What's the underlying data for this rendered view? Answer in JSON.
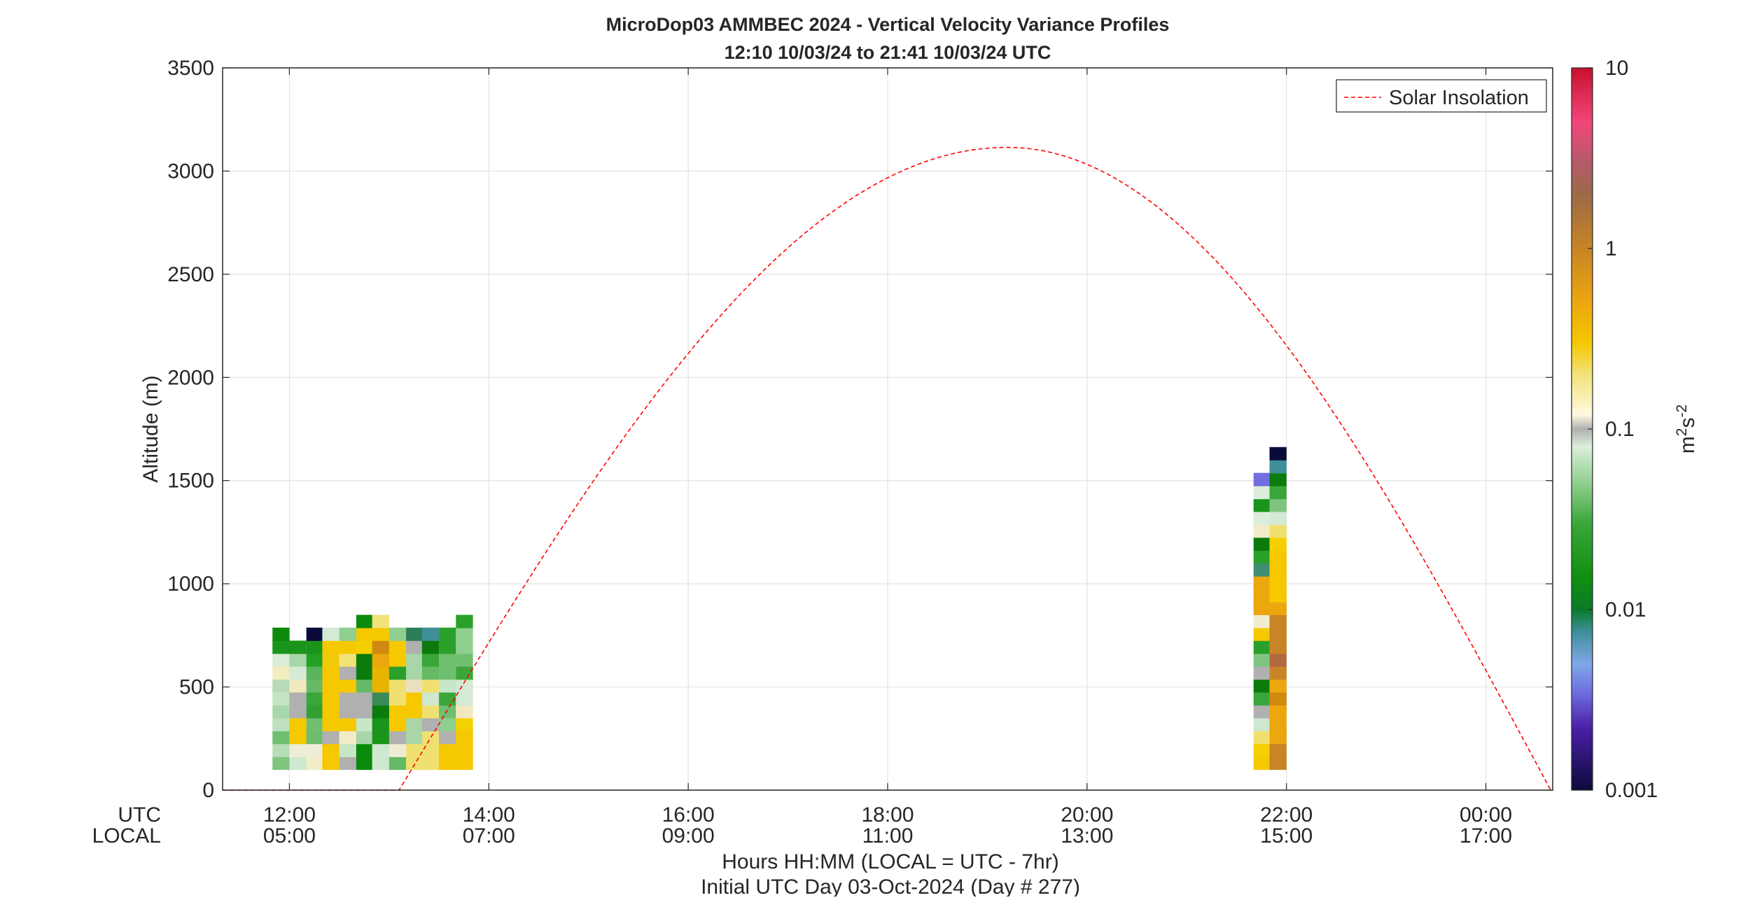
{
  "chart_data": {
    "type": "heatmap",
    "title": "MicroDop03 AMMBEC 2024 - Vertical Velocity Variance Profiles",
    "subtitle": "12:10 10/03/24 to 21:41 10/03/24  UTC",
    "ylabel": "Altitude (m)",
    "xlabel": "Hours HH:MM  (LOCAL = UTC - 7hr)",
    "xlabel2": "Initial UTC Day 03-Oct-2024 (Day # 277)",
    "ylim": [
      0,
      3500
    ],
    "xlim_hours_utc": [
      11.33,
      24.67
    ],
    "grid": true,
    "yticks": [
      {
        "value": 0,
        "label": "0"
      },
      {
        "value": 500,
        "label": "500"
      },
      {
        "value": 1000,
        "label": "1000"
      },
      {
        "value": 1500,
        "label": "1500"
      },
      {
        "value": 2000,
        "label": "2000"
      },
      {
        "value": 2500,
        "label": "2500"
      },
      {
        "value": 3000,
        "label": "3000"
      },
      {
        "value": 3500,
        "label": "3500"
      }
    ],
    "xrow_titles": {
      "utc": "UTC",
      "local": "LOCAL"
    },
    "xticks": [
      {
        "hour": 12,
        "utc": "12:00",
        "local": "05:00"
      },
      {
        "hour": 14,
        "utc": "14:00",
        "local": "07:00"
      },
      {
        "hour": 16,
        "utc": "16:00",
        "local": "09:00"
      },
      {
        "hour": 18,
        "utc": "18:00",
        "local": "11:00"
      },
      {
        "hour": 20,
        "utc": "20:00",
        "local": "13:00"
      },
      {
        "hour": 22,
        "utc": "22:00",
        "local": "15:00"
      },
      {
        "hour": 24,
        "utc": "00:00",
        "local": "17:00"
      }
    ],
    "legend": {
      "label": "Solar Insolation",
      "position": "top-right",
      "color": "#ff0000"
    },
    "solar_insolation_curve": {
      "zero_until_hour": 13.1,
      "peak_hour": 19.2,
      "peak_altitude_m": 3115,
      "ends_hour": 24.65
    },
    "colorbar": {
      "scale": "log",
      "range": [
        0.001,
        10
      ],
      "ticks": [
        {
          "value": 0.001,
          "label": "0.001"
        },
        {
          "value": 0.01,
          "label": "0.01"
        },
        {
          "value": 0.1,
          "label": "0.1"
        },
        {
          "value": 1,
          "label": "1"
        },
        {
          "value": 10,
          "label": "10"
        }
      ],
      "label_base": "m",
      "label_exp1": "2",
      "label_mid": "s",
      "label_exp2": "-2",
      "stops": [
        {
          "v": 0.001,
          "color": "#0b0b3b"
        },
        {
          "v": 0.0022,
          "color": "#4b1ea8"
        },
        {
          "v": 0.0035,
          "color": "#6f6fe0"
        },
        {
          "v": 0.005,
          "color": "#7fa8e8"
        },
        {
          "v": 0.0075,
          "color": "#3f8f9a"
        },
        {
          "v": 0.01,
          "color": "#0a7a2a"
        },
        {
          "v": 0.015,
          "color": "#0f8f10"
        },
        {
          "v": 0.03,
          "color": "#3aa63a"
        },
        {
          "v": 0.05,
          "color": "#8fcf8f"
        },
        {
          "v": 0.08,
          "color": "#dbeedb"
        },
        {
          "v": 0.1,
          "color": "#b0b0b0"
        },
        {
          "v": 0.12,
          "color": "#fff9e0"
        },
        {
          "v": 0.2,
          "color": "#f2e27a"
        },
        {
          "v": 0.3,
          "color": "#f5c800"
        },
        {
          "v": 0.5,
          "color": "#eca70e"
        },
        {
          "v": 1,
          "color": "#c88425"
        },
        {
          "v": 2,
          "color": "#9b6a48"
        },
        {
          "v": 3,
          "color": "#b65a6a"
        },
        {
          "v": 5,
          "color": "#f2467a"
        },
        {
          "v": 10,
          "color": "#c8102e"
        }
      ]
    },
    "profiles": [
      {
        "hour": 11.83,
        "cells": [
          [
            100,
            "#7fc57f"
          ],
          [
            162,
            "#b6ddb6"
          ],
          [
            225,
            "#6fbf6f"
          ],
          [
            287,
            "#bfe0bf"
          ],
          [
            350,
            "#aad7aa"
          ],
          [
            412,
            "#c4e4c4"
          ],
          [
            475,
            "#b8dcb8"
          ],
          [
            537,
            "#f2ecc0"
          ],
          [
            600,
            "#dcecd6"
          ],
          [
            662,
            "#1a941a"
          ],
          [
            725,
            "#0c8a0c"
          ]
        ]
      },
      {
        "hour": 12.0,
        "cells": [
          [
            100,
            "#cfe8cf"
          ],
          [
            162,
            "#eeeed8"
          ],
          [
            225,
            "#f5c800"
          ],
          [
            287,
            "#f5c800"
          ],
          [
            350,
            "#b0b0b0"
          ],
          [
            412,
            "#b0b0b0"
          ],
          [
            475,
            "#f2e8c0"
          ],
          [
            537,
            "#d6ead6"
          ],
          [
            600,
            "#a8d6a8"
          ],
          [
            662,
            "#1a941a"
          ]
        ]
      },
      {
        "hour": 12.17,
        "cells": [
          [
            100,
            "#f2ecc8"
          ],
          [
            162,
            "#eeeed8"
          ],
          [
            225,
            "#6dbd6d"
          ],
          [
            287,
            "#6fbf6f"
          ],
          [
            350,
            "#32a032"
          ],
          [
            412,
            "#3aa63a"
          ],
          [
            475,
            "#66ba66"
          ],
          [
            537,
            "#5ab45a"
          ],
          [
            600,
            "#23a023"
          ],
          [
            662,
            "#1a941a"
          ],
          [
            725,
            "#0b0b3b"
          ]
        ]
      },
      {
        "hour": 12.33,
        "cells": [
          [
            100,
            "#f5c800"
          ],
          [
            162,
            "#f5c800"
          ],
          [
            225,
            "#b0b0b0"
          ],
          [
            287,
            "#f5c800"
          ],
          [
            350,
            "#f5c800"
          ],
          [
            412,
            "#f5c800"
          ],
          [
            475,
            "#f5c800"
          ],
          [
            537,
            "#f5c800"
          ],
          [
            600,
            "#f2c80a"
          ],
          [
            662,
            "#f5c800"
          ],
          [
            725,
            "#d4ead4"
          ]
        ]
      },
      {
        "hour": 12.5,
        "cells": [
          [
            100,
            "#b0b0b0"
          ],
          [
            162,
            "#c8e6c8"
          ],
          [
            225,
            "#f2ecc8"
          ],
          [
            287,
            "#f5c800"
          ],
          [
            350,
            "#b0b0b0"
          ],
          [
            412,
            "#b0b0b0"
          ],
          [
            475,
            "#f5c800"
          ],
          [
            537,
            "#b0b0b0"
          ],
          [
            600,
            "#f2e27a"
          ],
          [
            662,
            "#f5c800"
          ],
          [
            725,
            "#8fcf8f"
          ]
        ]
      },
      {
        "hour": 12.67,
        "cells": [
          [
            100,
            "#0a8a0a"
          ],
          [
            162,
            "#0a8a0a"
          ],
          [
            225,
            "#a8d6a8"
          ],
          [
            287,
            "#c8e6c8"
          ],
          [
            350,
            "#b0b0b0"
          ],
          [
            412,
            "#b0b0b0"
          ],
          [
            475,
            "#66ba66"
          ],
          [
            537,
            "#0b7b0b"
          ],
          [
            600,
            "#0b7b0b"
          ],
          [
            662,
            "#f5d000"
          ],
          [
            725,
            "#f5c800"
          ],
          [
            787,
            "#0c8a0c"
          ]
        ]
      },
      {
        "hour": 12.83,
        "cells": [
          [
            100,
            "#cfe8cf"
          ],
          [
            162,
            "#cfe8cf"
          ],
          [
            225,
            "#1a941a"
          ],
          [
            287,
            "#1a941a"
          ],
          [
            350,
            "#0b7b0b"
          ],
          [
            412,
            "#3a8a5a"
          ],
          [
            475,
            "#e8b400"
          ],
          [
            537,
            "#e8b400"
          ],
          [
            600,
            "#eca70e"
          ],
          [
            662,
            "#d08a10"
          ],
          [
            725,
            "#f5c800"
          ],
          [
            787,
            "#f2e27a"
          ]
        ]
      },
      {
        "hour": 13.0,
        "cells": [
          [
            100,
            "#66ba66"
          ],
          [
            162,
            "#f0ecd4"
          ],
          [
            225,
            "#b0b0b0"
          ],
          [
            287,
            "#f5c800"
          ],
          [
            350,
            "#f5c800"
          ],
          [
            412,
            "#f0e070"
          ],
          [
            475,
            "#f0e070"
          ],
          [
            537,
            "#2aa02a"
          ],
          [
            600,
            "#f5c800"
          ],
          [
            662,
            "#f5c800"
          ],
          [
            725,
            "#8fcf8f"
          ]
        ]
      },
      {
        "hour": 13.17,
        "cells": [
          [
            100,
            "#f0e070"
          ],
          [
            162,
            "#f0e070"
          ],
          [
            225,
            "#a8d6a8"
          ],
          [
            287,
            "#a8d6a8"
          ],
          [
            350,
            "#f5c800"
          ],
          [
            412,
            "#f5c800"
          ],
          [
            475,
            "#e8e0c0"
          ],
          [
            537,
            "#a8d6a8"
          ],
          [
            600,
            "#a8d6a8"
          ],
          [
            662,
            "#b0b0b0"
          ],
          [
            725,
            "#2e7d5a"
          ]
        ]
      },
      {
        "hour": 13.33,
        "cells": [
          [
            100,
            "#f0e070"
          ],
          [
            162,
            "#f0e070"
          ],
          [
            225,
            "#f0e070"
          ],
          [
            287,
            "#b0b0b0"
          ],
          [
            350,
            "#f0e070"
          ],
          [
            412,
            "#cfe6cf"
          ],
          [
            475,
            "#f0e070"
          ],
          [
            537,
            "#66ba66"
          ],
          [
            600,
            "#3aa63a"
          ],
          [
            662,
            "#0b7b0b"
          ],
          [
            725,
            "#3f8f9a"
          ]
        ]
      },
      {
        "hour": 13.5,
        "cells": [
          [
            100,
            "#f5c800"
          ],
          [
            162,
            "#f5c800"
          ],
          [
            225,
            "#b0b0b0"
          ],
          [
            287,
            "#8fcf8f"
          ],
          [
            350,
            "#6fbf6f"
          ],
          [
            412,
            "#3aa63a"
          ],
          [
            475,
            "#c8e6c8"
          ],
          [
            537,
            "#6fbf6f"
          ],
          [
            600,
            "#6fbf6f"
          ],
          [
            662,
            "#2aa02a"
          ],
          [
            725,
            "#2aa02a"
          ]
        ]
      },
      {
        "hour": 13.67,
        "cells": [
          [
            100,
            "#f5c800"
          ],
          [
            162,
            "#f5c800"
          ],
          [
            225,
            "#f5c800"
          ],
          [
            287,
            "#f5d000"
          ],
          [
            350,
            "#f2e8c0"
          ],
          [
            412,
            "#d4ead4"
          ],
          [
            475,
            "#d4ead4"
          ],
          [
            537,
            "#3aa63a"
          ],
          [
            600,
            "#6fbf6f"
          ],
          [
            662,
            "#8fcf8f"
          ],
          [
            725,
            "#8fcf8f"
          ],
          [
            787,
            "#2aa02a"
          ]
        ]
      },
      {
        "hour": 21.67,
        "cells": [
          [
            100,
            "#f5c800"
          ],
          [
            162,
            "#f5d000"
          ],
          [
            225,
            "#f0e070"
          ],
          [
            287,
            "#cfe6cf"
          ],
          [
            350,
            "#b0b0b0"
          ],
          [
            412,
            "#3aa63a"
          ],
          [
            475,
            "#0b7b0b"
          ],
          [
            537,
            "#b0b0b0"
          ],
          [
            600,
            "#7fc57f"
          ],
          [
            662,
            "#2aa02a"
          ],
          [
            725,
            "#f5c800"
          ],
          [
            787,
            "#f2ecd0"
          ],
          [
            850,
            "#eca70e"
          ],
          [
            912,
            "#eca70e"
          ],
          [
            975,
            "#eca70e"
          ],
          [
            1037,
            "#3f8f70"
          ],
          [
            1100,
            "#2aa02a"
          ],
          [
            1162,
            "#0b7b0b"
          ],
          [
            1225,
            "#f2ecc8"
          ],
          [
            1287,
            "#dbeedb"
          ],
          [
            1350,
            "#1a941a"
          ],
          [
            1412,
            "#dbeedb"
          ],
          [
            1475,
            "#6f6fe0"
          ]
        ]
      },
      {
        "hour": 21.83,
        "cells": [
          [
            100,
            "#c88425"
          ],
          [
            162,
            "#c88425"
          ],
          [
            225,
            "#eca70e"
          ],
          [
            287,
            "#eca70e"
          ],
          [
            350,
            "#eca70e"
          ],
          [
            412,
            "#d08a10"
          ],
          [
            475,
            "#eca70e"
          ],
          [
            537,
            "#c88425"
          ],
          [
            600,
            "#b06a40"
          ],
          [
            662,
            "#c88425"
          ],
          [
            725,
            "#c88425"
          ],
          [
            787,
            "#c88425"
          ],
          [
            850,
            "#eca70e"
          ],
          [
            912,
            "#f5c800"
          ],
          [
            975,
            "#f5c800"
          ],
          [
            1037,
            "#f5c800"
          ],
          [
            1100,
            "#f5c800"
          ],
          [
            1162,
            "#f5d000"
          ],
          [
            1225,
            "#f0e070"
          ],
          [
            1287,
            "#d4ead4"
          ],
          [
            1350,
            "#7fc57f"
          ],
          [
            1412,
            "#3aa63a"
          ],
          [
            1475,
            "#0b7b0b"
          ],
          [
            1537,
            "#3f8f9a"
          ],
          [
            1600,
            "#0b0b3b"
          ]
        ]
      }
    ]
  }
}
